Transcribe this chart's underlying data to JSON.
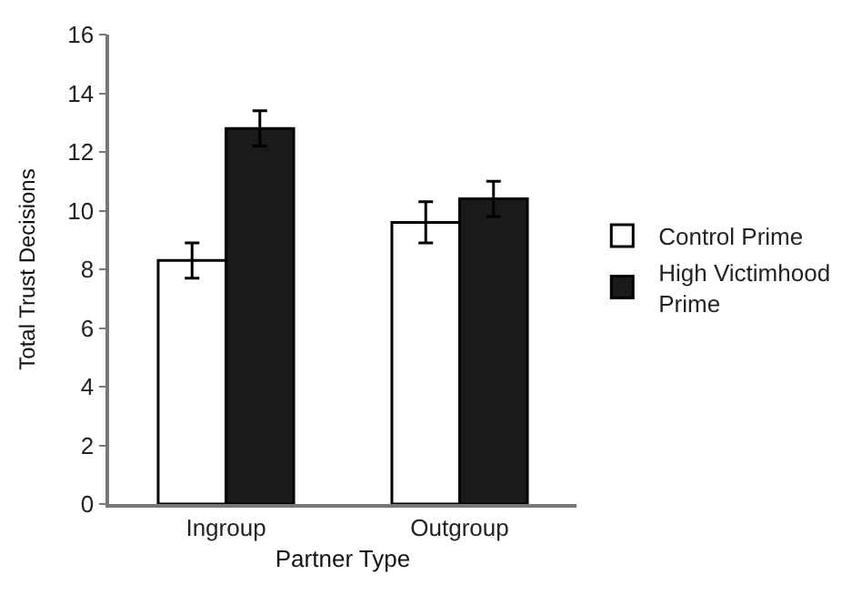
{
  "chart_data": {
    "type": "bar",
    "xlabel": "Partner Type",
    "ylabel": "Total Trust Decisions",
    "categories": [
      "Ingroup",
      "Outgroup"
    ],
    "series": [
      {
        "name": "Control Prime",
        "color": "#ffffff",
        "values": [
          8.3,
          9.6
        ],
        "errors": [
          0.6,
          0.7
        ]
      },
      {
        "name": "High Victimhood Prime",
        "color": "#1a1a1a",
        "values": [
          12.8,
          10.4
        ],
        "errors": [
          0.6,
          0.6
        ]
      }
    ],
    "ylim": [
      0,
      16
    ],
    "yticks": [
      0,
      2,
      4,
      6,
      8,
      10,
      12,
      14,
      16
    ],
    "legend": "right"
  }
}
